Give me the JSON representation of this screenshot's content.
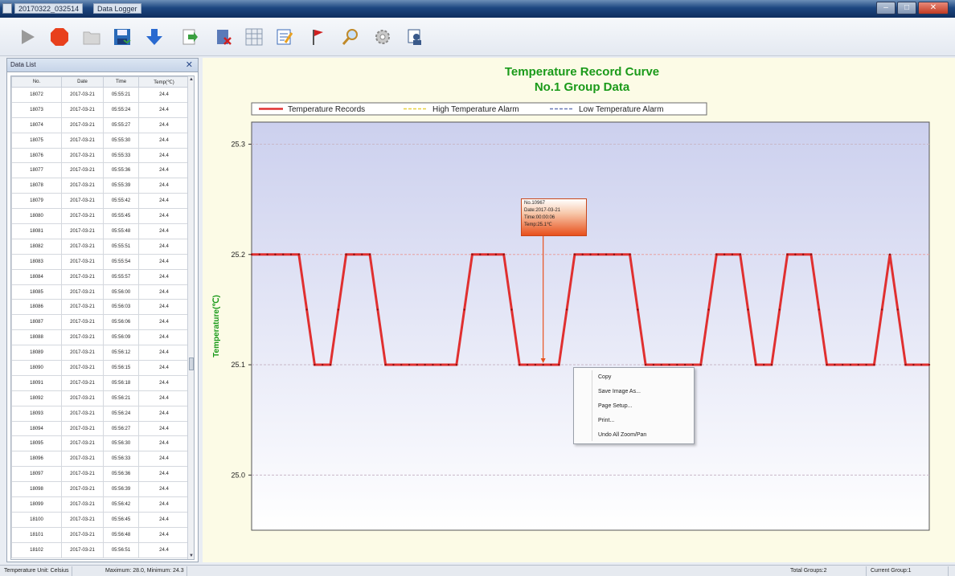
{
  "window": {
    "title_left": "20170322_032514",
    "title_right": "Data Logger",
    "buttons": {
      "minimize": "–",
      "maximize": "□",
      "close": "✕"
    }
  },
  "toolbar": {
    "items": [
      {
        "icon": "play-icon",
        "color": "#9a9a9a"
      },
      {
        "icon": "stop-icon",
        "color": "#e8401c"
      },
      {
        "icon": "folder-icon",
        "color": "#c8c8c8"
      },
      {
        "icon": "save-icon",
        "color": "#2a6ab8"
      },
      {
        "icon": "download-icon",
        "color": "#2a6ad0"
      },
      {
        "icon": "export-icon",
        "color": "#3aa040"
      },
      {
        "icon": "delete-records-icon",
        "color": "#3a5a9a"
      },
      {
        "icon": "table-icon",
        "color": "#8a9ab0"
      },
      {
        "icon": "edit-icon",
        "color": "#3a6ab8"
      },
      {
        "icon": "flag-icon",
        "color": "#d02020"
      },
      {
        "icon": "search-icon",
        "color": "#c08a2a"
      },
      {
        "icon": "gear-icon",
        "color": "#9a9a9a"
      },
      {
        "icon": "user-icon",
        "color": "#3a5a8a"
      }
    ]
  },
  "data_list": {
    "title": "Data List",
    "close": "✕",
    "columns": [
      "No.",
      "Date",
      "Time",
      "Temp(℃)"
    ],
    "rows": [
      [
        "18072",
        "2017-03-21",
        "05:55:21",
        "24.4"
      ],
      [
        "18073",
        "2017-03-21",
        "05:55:24",
        "24.4"
      ],
      [
        "18074",
        "2017-03-21",
        "05:55:27",
        "24.4"
      ],
      [
        "18075",
        "2017-03-21",
        "05:55:30",
        "24.4"
      ],
      [
        "18076",
        "2017-03-21",
        "05:55:33",
        "24.4"
      ],
      [
        "18077",
        "2017-03-21",
        "05:55:36",
        "24.4"
      ],
      [
        "18078",
        "2017-03-21",
        "05:55:39",
        "24.4"
      ],
      [
        "18079",
        "2017-03-21",
        "05:55:42",
        "24.4"
      ],
      [
        "18080",
        "2017-03-21",
        "05:55:45",
        "24.4"
      ],
      [
        "18081",
        "2017-03-21",
        "05:55:48",
        "24.4"
      ],
      [
        "18082",
        "2017-03-21",
        "05:55:51",
        "24.4"
      ],
      [
        "18083",
        "2017-03-21",
        "05:55:54",
        "24.4"
      ],
      [
        "18084",
        "2017-03-21",
        "05:55:57",
        "24.4"
      ],
      [
        "18085",
        "2017-03-21",
        "05:56:00",
        "24.4"
      ],
      [
        "18086",
        "2017-03-21",
        "05:56:03",
        "24.4"
      ],
      [
        "18087",
        "2017-03-21",
        "05:56:06",
        "24.4"
      ],
      [
        "18088",
        "2017-03-21",
        "05:56:09",
        "24.4"
      ],
      [
        "18089",
        "2017-03-21",
        "05:56:12",
        "24.4"
      ],
      [
        "18090",
        "2017-03-21",
        "05:56:15",
        "24.4"
      ],
      [
        "18091",
        "2017-03-21",
        "05:56:18",
        "24.4"
      ],
      [
        "18092",
        "2017-03-21",
        "05:56:21",
        "24.4"
      ],
      [
        "18093",
        "2017-03-21",
        "05:56:24",
        "24.4"
      ],
      [
        "18094",
        "2017-03-21",
        "05:56:27",
        "24.4"
      ],
      [
        "18095",
        "2017-03-21",
        "05:56:30",
        "24.4"
      ],
      [
        "18096",
        "2017-03-21",
        "05:56:33",
        "24.4"
      ],
      [
        "18097",
        "2017-03-21",
        "05:56:36",
        "24.4"
      ],
      [
        "18098",
        "2017-03-21",
        "05:56:39",
        "24.4"
      ],
      [
        "18099",
        "2017-03-21",
        "05:56:42",
        "24.4"
      ],
      [
        "18100",
        "2017-03-21",
        "05:56:45",
        "24.4"
      ],
      [
        "18101",
        "2017-03-21",
        "05:56:48",
        "24.4"
      ],
      [
        "18102",
        "2017-03-21",
        "05:56:51",
        "24.4"
      ]
    ]
  },
  "chart": {
    "title": "Temperature Record Curve",
    "subtitle": "No.1 Group Data",
    "ylabel": "Temperature(℃)",
    "legend": [
      {
        "label": "Temperature Records",
        "color": "#e03030",
        "style": "solid"
      },
      {
        "label": "High Temperature Alarm",
        "color": "#e8d040",
        "style": "dashed"
      },
      {
        "label": "Low Temperature Alarm",
        "color": "#6a7ab8",
        "style": "dashed"
      }
    ],
    "title_color": "#1a9a1a",
    "line_color": "#e03030"
  },
  "chart_data": {
    "type": "line",
    "title": "Temperature Record Curve",
    "subtitle": "No.1 Group Data",
    "ylabel": "Temperature(℃)",
    "xlabel": "",
    "ylim": [
      24.95,
      25.32
    ],
    "yticks": [
      "25.3",
      "25.2",
      "25.1",
      "25.0"
    ],
    "ytick_values": [
      25.3,
      25.2,
      25.1,
      25.0
    ],
    "grid": true,
    "legend_position": "top",
    "series": [
      {
        "name": "Temperature Records",
        "x": [
          0,
          0.5,
          1,
          1.5,
          2,
          2.5,
          3,
          3.5,
          4,
          4.5,
          5,
          5.5,
          6,
          6.5,
          7,
          7.5,
          8,
          8.5,
          9,
          9.5,
          10,
          10.5,
          11,
          11.5,
          12,
          12.5,
          13,
          13.5,
          14,
          14.5,
          15,
          15.5,
          16,
          16.5,
          17,
          17.5,
          18,
          18.5,
          19,
          19.5,
          20,
          20.5,
          21,
          21.5,
          22,
          22.5,
          23,
          23.5,
          24,
          24.5,
          25,
          25.5,
          26,
          26.5,
          27,
          27.5,
          28,
          28.5,
          29,
          29.5,
          30,
          30.5,
          31,
          31.5,
          32,
          32.5,
          33,
          33.5,
          34,
          34.5,
          35,
          35.5,
          36,
          36.5,
          37,
          37.5,
          38,
          38.5,
          39,
          39.5,
          40,
          40.5,
          41,
          41.5,
          42,
          42.5,
          43
        ],
        "values": [
          25.2,
          25.2,
          25.2,
          25.2,
          25.2,
          25.2,
          25.2,
          25.15,
          25.1,
          25.1,
          25.1,
          25.15,
          25.2,
          25.2,
          25.2,
          25.2,
          25.15,
          25.1,
          25.1,
          25.1,
          25.1,
          25.1,
          25.1,
          25.1,
          25.1,
          25.1,
          25.1,
          25.15,
          25.2,
          25.2,
          25.2,
          25.2,
          25.2,
          25.15,
          25.1,
          25.1,
          25.1,
          25.1,
          25.1,
          25.1,
          25.15,
          25.2,
          25.2,
          25.2,
          25.2,
          25.2,
          25.2,
          25.2,
          25.2,
          25.15,
          25.1,
          25.1,
          25.1,
          25.1,
          25.1,
          25.1,
          25.1,
          25.1,
          25.15,
          25.2,
          25.2,
          25.2,
          25.2,
          25.15,
          25.1,
          25.1,
          25.1,
          25.15,
          25.2,
          25.2,
          25.2,
          25.2,
          25.15,
          25.1,
          25.1,
          25.1,
          25.1,
          25.1,
          25.1,
          25.1,
          25.15,
          25.2,
          25.15,
          25.1,
          25.1,
          25.1,
          25.1
        ],
        "color": "#e03030"
      }
    ],
    "marker": {
      "index": 37,
      "value": 25.1
    }
  },
  "tooltip": {
    "lines": [
      "No.10967",
      "Date:2017-03-21",
      "Time:00:00:06",
      "Temp:25.1℃"
    ]
  },
  "context_menu": {
    "items": [
      "Copy",
      "Save Image As...",
      "Page Setup...",
      "Print...",
      "Undo All Zoom/Pan"
    ]
  },
  "status": {
    "unit_text": "Temperature Unit: Celsius",
    "range_text": "Maximum: 28.0, Minimum: 24.3",
    "total_groups": "Total Groups:2",
    "current_group": "Current Group:1"
  }
}
